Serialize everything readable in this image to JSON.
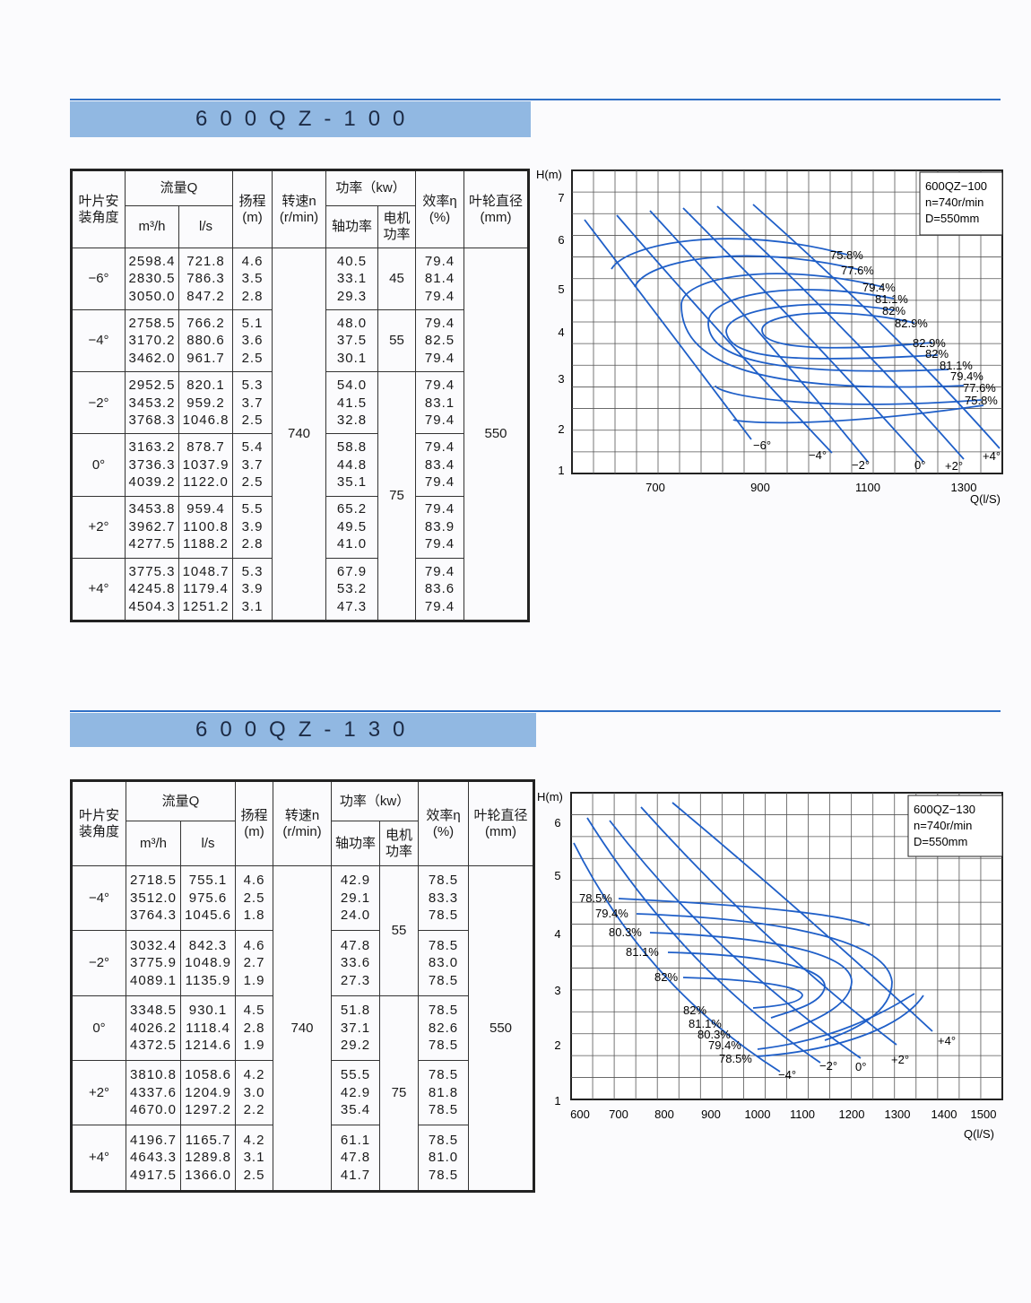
{
  "sections": [
    {
      "title": "600QZ-100",
      "headers": {
        "angle": "叶片安装角度",
        "flow": "流量Q",
        "flow_m3h": "m³/h",
        "flow_ls": "l/s",
        "head": "扬程",
        "head_unit": "(m)",
        "speed": "转速n",
        "speed_unit": "(r/min)",
        "power": "功率（kw）",
        "shaft_power": "轴功率",
        "motor_power": "电机功率",
        "eff": "效率η",
        "eff_unit": "(%)",
        "diameter": "叶轮直径",
        "diameter_unit": "(mm)"
      },
      "speed": "740",
      "diameter": "550",
      "motor_groups": [
        {
          "value": "45",
          "span": 1
        },
        {
          "value": "55",
          "span": 1
        },
        {
          "value": "75",
          "span": 4
        }
      ],
      "rows": [
        {
          "angle": "−6°",
          "m3h": [
            "2598.4",
            "2830.5",
            "3050.0"
          ],
          "ls": [
            "721.8",
            "786.3",
            "847.2"
          ],
          "h": [
            "4.6",
            "3.5",
            "2.8"
          ],
          "p": [
            "40.5",
            "33.1",
            "29.3"
          ],
          "eff": [
            "79.4",
            "81.4",
            "79.4"
          ]
        },
        {
          "angle": "−4°",
          "m3h": [
            "2758.5",
            "3170.2",
            "3462.0"
          ],
          "ls": [
            "766.2",
            "880.6",
            "961.7"
          ],
          "h": [
            "5.1",
            "3.6",
            "2.5"
          ],
          "p": [
            "48.0",
            "37.5",
            "30.1"
          ],
          "eff": [
            "79.4",
            "82.5",
            "79.4"
          ]
        },
        {
          "angle": "−2°",
          "m3h": [
            "2952.5",
            "3453.2",
            "3768.3"
          ],
          "ls": [
            "820.1",
            "959.2",
            "1046.8"
          ],
          "h": [
            "5.3",
            "3.7",
            "2.5"
          ],
          "p": [
            "54.0",
            "41.5",
            "32.8"
          ],
          "eff": [
            "79.4",
            "83.1",
            "79.4"
          ]
        },
        {
          "angle": "0°",
          "m3h": [
            "3163.2",
            "3736.3",
            "4039.2"
          ],
          "ls": [
            "878.7",
            "1037.9",
            "1122.0"
          ],
          "h": [
            "5.4",
            "3.7",
            "2.5"
          ],
          "p": [
            "58.8",
            "44.8",
            "35.1"
          ],
          "eff": [
            "79.4",
            "83.4",
            "79.4"
          ]
        },
        {
          "angle": "+2°",
          "m3h": [
            "3453.8",
            "3962.7",
            "4277.5"
          ],
          "ls": [
            "959.4",
            "1100.8",
            "1188.2"
          ],
          "h": [
            "5.5",
            "3.9",
            "2.8"
          ],
          "p": [
            "65.2",
            "49.5",
            "41.0"
          ],
          "eff": [
            "79.4",
            "83.9",
            "79.4"
          ]
        },
        {
          "angle": "+4°",
          "m3h": [
            "3775.3",
            "4245.8",
            "4504.3"
          ],
          "ls": [
            "1048.7",
            "1179.4",
            "1251.2"
          ],
          "h": [
            "5.3",
            "3.9",
            "3.1"
          ],
          "p": [
            "67.9",
            "53.2",
            "47.3"
          ],
          "eff": [
            "79.4",
            "83.6",
            "79.4"
          ]
        }
      ],
      "chart": {
        "y_label": "H(m)",
        "x_label": "Q(l/S)",
        "y_ticks": [
          "7",
          "6",
          "5",
          "4",
          "3",
          "2",
          "1"
        ],
        "x_ticks": [
          "700",
          "900",
          "1100",
          "1300"
        ],
        "legend": [
          "600QZ−100",
          "n=740r/min",
          "D=550mm"
        ],
        "efficiency_labels": [
          "75.8%",
          "77.6%",
          "79.4%",
          "81.1%",
          "82%",
          "82.9%",
          "82.9%",
          "82%",
          "81.1%",
          "79.4%",
          "77.6%",
          "75.8%"
        ],
        "angle_labels": [
          "−6°",
          "−4°",
          "−2°",
          "0°",
          "+2°",
          "+4°"
        ]
      }
    },
    {
      "title": "600QZ-130",
      "headers": {
        "angle": "叶片安装角度",
        "flow": "流量Q",
        "flow_m3h": "m³/h",
        "flow_ls": "l/s",
        "head": "扬程",
        "head_unit": "(m)",
        "speed": "转速n",
        "speed_unit": "(r/min)",
        "power": "功率（kw）",
        "shaft_power": "轴功率",
        "motor_power": "电机功率",
        "eff": "效率η",
        "eff_unit": "(%)",
        "diameter": "叶轮直径",
        "diameter_unit": "(mm)"
      },
      "speed": "740",
      "diameter": "550",
      "motor_groups": [
        {
          "value": "55",
          "span": 2
        },
        {
          "value": "75",
          "span": 3
        }
      ],
      "rows": [
        {
          "angle": "−4°",
          "m3h": [
            "2718.5",
            "3512.0",
            "3764.3"
          ],
          "ls": [
            "755.1",
            "975.6",
            "1045.6"
          ],
          "h": [
            "4.6",
            "2.5",
            "1.8"
          ],
          "p": [
            "42.9",
            "29.1",
            "24.0"
          ],
          "eff": [
            "78.5",
            "83.3",
            "78.5"
          ]
        },
        {
          "angle": "−2°",
          "m3h": [
            "3032.4",
            "3775.9",
            "4089.1"
          ],
          "ls": [
            "842.3",
            "1048.9",
            "1135.9"
          ],
          "h": [
            "4.6",
            "2.7",
            "1.9"
          ],
          "p": [
            "47.8",
            "33.6",
            "27.3"
          ],
          "eff": [
            "78.5",
            "83.0",
            "78.5"
          ]
        },
        {
          "angle": "0°",
          "m3h": [
            "3348.5",
            "4026.2",
            "4372.5"
          ],
          "ls": [
            "930.1",
            "1118.4",
            "1214.6"
          ],
          "h": [
            "4.5",
            "2.8",
            "1.9"
          ],
          "p": [
            "51.8",
            "37.1",
            "29.2"
          ],
          "eff": [
            "78.5",
            "82.6",
            "78.5"
          ]
        },
        {
          "angle": "+2°",
          "m3h": [
            "3810.8",
            "4337.6",
            "4670.0"
          ],
          "ls": [
            "1058.6",
            "1204.9",
            "1297.2"
          ],
          "h": [
            "4.2",
            "3.0",
            "2.2"
          ],
          "p": [
            "55.5",
            "42.9",
            "35.4"
          ],
          "eff": [
            "78.5",
            "81.8",
            "78.5"
          ]
        },
        {
          "angle": "+4°",
          "m3h": [
            "4196.7",
            "4643.3",
            "4917.5"
          ],
          "ls": [
            "1165.7",
            "1289.8",
            "1366.0"
          ],
          "h": [
            "4.2",
            "3.1",
            "2.5"
          ],
          "p": [
            "61.1",
            "47.8",
            "41.7"
          ],
          "eff": [
            "78.5",
            "81.0",
            "78.5"
          ]
        }
      ],
      "chart": {
        "y_label": "H(m)",
        "x_label": "Q(l/S)",
        "y_ticks": [
          "6",
          "5",
          "4",
          "3",
          "2",
          "1"
        ],
        "x_ticks": [
          "600",
          "700",
          "800",
          "900",
          "1000",
          "1100",
          "1200",
          "1300",
          "1400",
          "1500"
        ],
        "legend": [
          "600QZ−130",
          "n=740r/min",
          "D=550mm"
        ],
        "efficiency_labels": [
          "78.5%",
          "79.4%",
          "80.3%",
          "81.1%",
          "82%",
          "82%",
          "81.1%",
          "80.3%",
          "79.4%",
          "78.5%"
        ],
        "angle_labels": [
          "−4°",
          "−2°",
          "0°",
          "+2°",
          "+4°"
        ]
      }
    }
  ],
  "colors": {
    "curve": "#1f5fc8",
    "title_bar": "#91b8e2",
    "rule": "#2f6fc6"
  }
}
